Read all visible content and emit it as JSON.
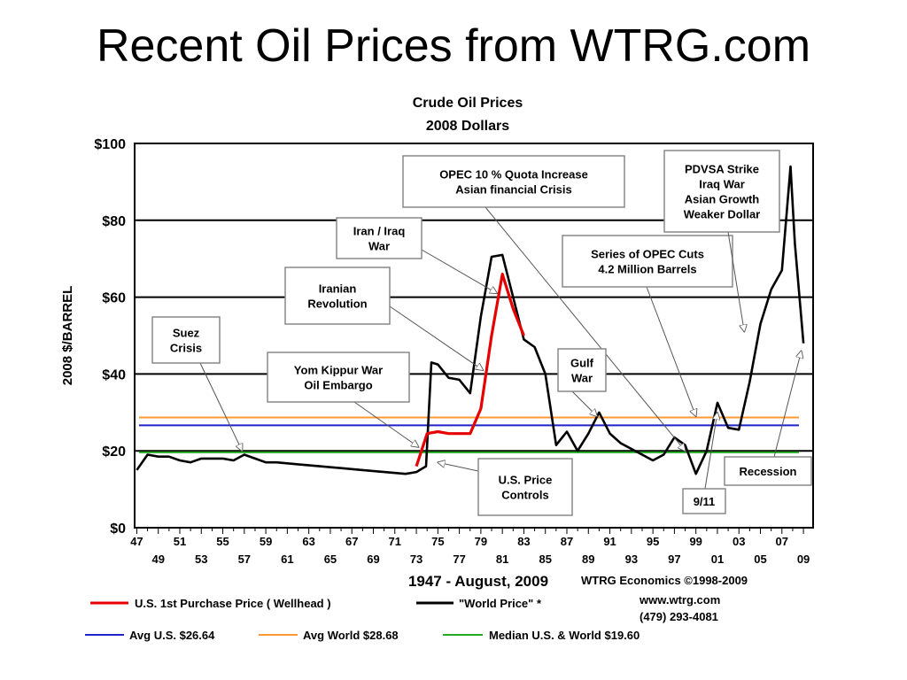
{
  "slide": {
    "title": "Recent Oil Prices from WTRG.com"
  },
  "colors": {
    "world": "#000000",
    "us": "#e60000",
    "avg_us": "#2222cc",
    "avg_world": "#ff9933",
    "median": "#22aa22",
    "grid": "#000000"
  },
  "chart_data": {
    "type": "line",
    "title": "Crude Oil Prices",
    "subtitle": "2008 Dollars",
    "ylabel": "2008 $/BARREL",
    "xlabel": "1947 - August, 2009",
    "ylim": [
      0,
      100
    ],
    "xlim": [
      1946.8,
      2009.9
    ],
    "grid": true,
    "yticks": [
      "$0",
      "$20",
      "$40",
      "$60",
      "$80",
      "$100"
    ],
    "ytick_values": [
      0,
      20,
      40,
      60,
      80,
      100
    ],
    "xticks_top": [
      "47",
      "51",
      "55",
      "59",
      "63",
      "67",
      "71",
      "75",
      "79",
      "83",
      "87",
      "91",
      "95",
      "99",
      "03",
      "07"
    ],
    "xticks_bottom": [
      "49",
      "53",
      "57",
      "61",
      "65",
      "69",
      "73",
      "77",
      "81",
      "85",
      "89",
      "93",
      "97",
      "01",
      "05",
      "09"
    ],
    "series": [
      {
        "name": "\"World Price\" *",
        "color": "#000000",
        "x": [
          1947,
          1948,
          1949,
          1950,
          1951,
          1952,
          1953,
          1954,
          1955,
          1956,
          1957,
          1958,
          1959,
          1960,
          1962,
          1964,
          1966,
          1968,
          1970,
          1972,
          1973,
          1973.9,
          1974.4,
          1975,
          1976,
          1977,
          1978,
          1979,
          1980,
          1981,
          1982,
          1983,
          1984,
          1985,
          1986,
          1987,
          1988,
          1989,
          1990,
          1991,
          1992,
          1994,
          1995,
          1996,
          1997,
          1998,
          1999,
          2000,
          2001,
          2002,
          2003,
          2004,
          2005,
          2006,
          2007,
          2007.8,
          2008.2,
          2009
        ],
        "y": [
          15,
          19,
          18.5,
          18.5,
          17.5,
          17,
          18,
          18,
          18,
          17.5,
          19,
          18,
          17,
          17,
          16.5,
          16,
          15.5,
          15,
          14.5,
          14,
          14.5,
          16,
          43,
          42.5,
          39,
          38.5,
          35,
          55,
          70.5,
          71,
          60,
          49,
          47,
          40,
          21.5,
          25,
          20,
          24.5,
          30,
          24.5,
          22,
          19,
          17.5,
          19,
          23.5,
          21.5,
          14,
          20,
          32.5,
          26,
          25.5,
          38,
          53,
          62,
          67,
          94,
          74,
          48
        ]
      },
      {
        "name": "U.S. 1st Purchase Price ( Wellhead )",
        "color": "#e60000",
        "x": [
          1973,
          1974,
          1975,
          1976,
          1977,
          1978,
          1979,
          1980,
          1981,
          1982,
          1983
        ],
        "y": [
          16,
          24.5,
          25,
          24.5,
          24.5,
          24.5,
          31,
          50,
          66,
          57,
          50
        ]
      }
    ],
    "reference_lines": [
      {
        "name": "Avg U.S. $26.64",
        "value": 26.64,
        "color": "#2222cc"
      },
      {
        "name": "Avg World $28.68",
        "value": 28.68,
        "color": "#ff9933"
      },
      {
        "name": "Median U.S. & World  $19.60",
        "value": 19.6,
        "color": "#22aa22"
      }
    ],
    "annotations": [
      {
        "lines": [
          "Suez",
          "Crisis"
        ],
        "arrow_to": [
          1956.8,
          20
        ]
      },
      {
        "lines": [
          "Yom Kippur War",
          "Oil Embargo"
        ],
        "arrow_to": [
          1973.2,
          21
        ]
      },
      {
        "lines": [
          "Iranian",
          "Revolution"
        ],
        "arrow_to": [
          1979.2,
          41
        ]
      },
      {
        "lines": [
          "Iran / Iraq",
          "War"
        ],
        "arrow_to": [
          1980.5,
          61
        ]
      },
      {
        "lines": [
          "OPEC 10 % Quota Increase",
          "Asian financial Crisis"
        ],
        "arrow_to": [
          1998.0,
          20
        ]
      },
      {
        "lines": [
          "U.S. Price",
          "Controls"
        ],
        "arrow_to": [
          1975.0,
          17
        ]
      },
      {
        "lines": [
          "Gulf",
          "War"
        ],
        "arrow_to": [
          1989.8,
          29
        ]
      },
      {
        "lines": [
          "Series of OPEC Cuts",
          "4.2 Million Barrels"
        ],
        "arrow_to": [
          1999.0,
          29
        ]
      },
      {
        "lines": [
          "PDVSA Strike",
          "Iraq War",
          "Asian Growth",
          "Weaker Dollar"
        ],
        "arrow_to": [
          2003.5,
          51
        ]
      },
      {
        "lines": [
          "9/11"
        ],
        "arrow_to": [
          2001.0,
          30
        ]
      },
      {
        "lines": [
          "Recession"
        ],
        "arrow_to": [
          2008.8,
          46
        ]
      }
    ],
    "credits": [
      "WTRG Economics  ©1998-2009",
      "www.wtrg.com",
      "(479) 293-4081"
    ],
    "legend": {
      "row1": [
        "U.S. 1st Purchase Price ( Wellhead )",
        "\"World Price\" *"
      ],
      "row2": [
        "Avg U.S. $26.64",
        "Avg World $28.68",
        "Median U.S. & World  $19.60"
      ]
    }
  }
}
